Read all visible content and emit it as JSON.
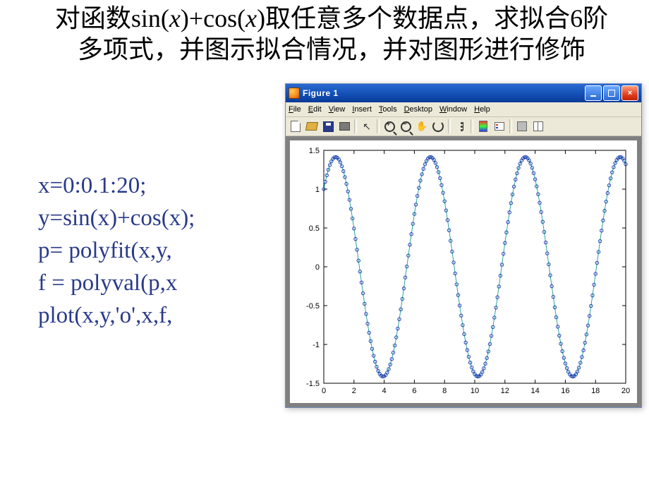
{
  "slide": {
    "title_html": "对函数sin(<i>x</i>)+cos(<i>x</i>)取任意多个数据点，求拟合6阶多项式，并图示拟合情况，并对图形进行修饰",
    "code_lines": [
      "x=0:0.1:20;",
      "y=sin(x)+cos(x);",
      "p= polyfit(x,y,",
      "f = polyval(p,x",
      "plot(x,y,'o',x,f,"
    ],
    "code_color": "#2a3a8a"
  },
  "figure_window": {
    "title": "Figure 1",
    "title_bg_from": "#2a6ad0",
    "title_bg_to": "#0a3a98",
    "window_bg": "#ece9d8",
    "buttons": {
      "minimize": "minimize-button",
      "maximize": "maximize-button",
      "close": "close-button"
    },
    "menus": [
      "File",
      "Edit",
      "View",
      "Insert",
      "Tools",
      "Desktop",
      "Window",
      "Help"
    ],
    "toolbar": [
      "new",
      "open",
      "save",
      "print",
      "|",
      "pointer",
      "zoom-in",
      "zoom-out",
      "pan",
      "rotate",
      "|",
      "datacursor",
      "|",
      "colormap",
      "legend",
      "|",
      "hide",
      "ploteditor"
    ]
  },
  "chart": {
    "type": "line+scatter",
    "x": {
      "min": 0,
      "max": 20,
      "step": 0.1
    },
    "formula": "sin(x)+cos(x)",
    "series": [
      {
        "name": "y_data",
        "style": "markers",
        "marker": "circle",
        "marker_radius": 2.2,
        "color": "#1030b0"
      },
      {
        "name": "f_fit",
        "style": "line",
        "line_width": 0.9,
        "color": "#1a9a9a"
      }
    ],
    "xlim": [
      0,
      20
    ],
    "ylim": [
      -1.5,
      1.5
    ],
    "xticks": [
      0,
      2,
      4,
      6,
      8,
      10,
      12,
      14,
      16,
      18,
      20
    ],
    "yticks": [
      -1.5,
      -1,
      -0.5,
      0,
      0.5,
      1,
      1.5
    ],
    "tick_fontsize": 11,
    "axis_color": "#000000",
    "background_color": "#ffffff",
    "panel_color": "#808080"
  }
}
